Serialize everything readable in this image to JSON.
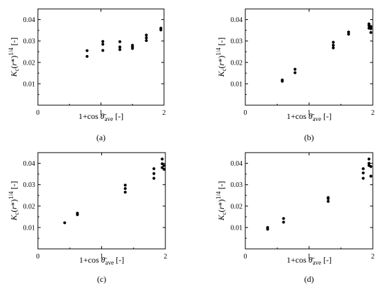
{
  "chart_data": [
    {
      "type": "scatter",
      "panel_label": "(a)",
      "xlabel": "1+cos θ̄ave [-]",
      "ylabel": "Kc(r*)1/4 [-]",
      "xlim": [
        0,
        2
      ],
      "ylim": [
        0,
        0.045
      ],
      "x_ticks": [
        "0",
        "1",
        "2"
      ],
      "y_ticks": [
        "0.01",
        "0.02",
        "0.03",
        "0.04"
      ],
      "series": [
        {
          "x": [
            0.78,
            0.78,
            1.03,
            1.03,
            1.03,
            1.3,
            1.3,
            1.3,
            1.5,
            1.5,
            1.5,
            1.72,
            1.72,
            1.72,
            1.95,
            1.95
          ],
          "y": [
            0.0228,
            0.0255,
            0.0256,
            0.0285,
            0.0298,
            0.026,
            0.0272,
            0.0297,
            0.0265,
            0.0272,
            0.028,
            0.0302,
            0.0315,
            0.0328,
            0.0352,
            0.036
          ]
        }
      ]
    },
    {
      "type": "scatter",
      "panel_label": "(b)",
      "xlabel": "1+cos θ̄ave [-]",
      "ylabel": "Kc(r*)1/4 [-]",
      "xlim": [
        0,
        2
      ],
      "ylim": [
        0,
        0.045
      ],
      "x_ticks": [
        "0",
        "1",
        "2"
      ],
      "y_ticks": [
        "0.01",
        "0.02",
        "0.03",
        "0.04"
      ],
      "series": [
        {
          "x": [
            0.58,
            0.58,
            0.78,
            0.78,
            1.38,
            1.38,
            1.38,
            1.62,
            1.62,
            1.94,
            1.94,
            1.94,
            1.97,
            1.97,
            1.97
          ],
          "y": [
            0.0112,
            0.0118,
            0.0152,
            0.0168,
            0.0268,
            0.028,
            0.0294,
            0.0332,
            0.0342,
            0.036,
            0.0372,
            0.038,
            0.034,
            0.0358,
            0.0368
          ]
        }
      ]
    },
    {
      "type": "scatter",
      "panel_label": "(c)",
      "xlabel": "1+cos θ̄ave [-]",
      "ylabel": "Kc(r*)1/4 [-]",
      "xlim": [
        0,
        2
      ],
      "ylim": [
        0,
        0.045
      ],
      "x_ticks": [
        "0",
        "1",
        "2"
      ],
      "y_ticks": [
        "0.01",
        "0.02",
        "0.03",
        "0.04"
      ],
      "series": [
        {
          "x": [
            0.42,
            0.62,
            0.62,
            1.37,
            1.37,
            1.37,
            1.82,
            1.82,
            1.82,
            1.95,
            1.95,
            1.95,
            1.98,
            1.98
          ],
          "y": [
            0.0122,
            0.016,
            0.0167,
            0.0265,
            0.0282,
            0.0298,
            0.033,
            0.0352,
            0.0375,
            0.038,
            0.0398,
            0.042,
            0.0372,
            0.039
          ]
        }
      ]
    },
    {
      "type": "scatter",
      "panel_label": "(d)",
      "xlabel": "1+cos θ̄ave [-]",
      "ylabel": "Kc(r*)1/4 [-]",
      "xlim": [
        0,
        2
      ],
      "ylim": [
        0,
        0.045
      ],
      "x_ticks": [
        "0",
        "1",
        "2"
      ],
      "y_ticks": [
        "0.01",
        "0.02",
        "0.03",
        "0.04"
      ],
      "series": [
        {
          "x": [
            0.35,
            0.35,
            0.6,
            0.6,
            1.3,
            1.3,
            1.3,
            1.85,
            1.85,
            1.85,
            1.94,
            1.94,
            1.94,
            1.97,
            1.97
          ],
          "y": [
            0.0092,
            0.01,
            0.0125,
            0.0142,
            0.0222,
            0.0235,
            0.024,
            0.033,
            0.0355,
            0.0375,
            0.039,
            0.04,
            0.042,
            0.034,
            0.0385
          ]
        }
      ]
    }
  ]
}
